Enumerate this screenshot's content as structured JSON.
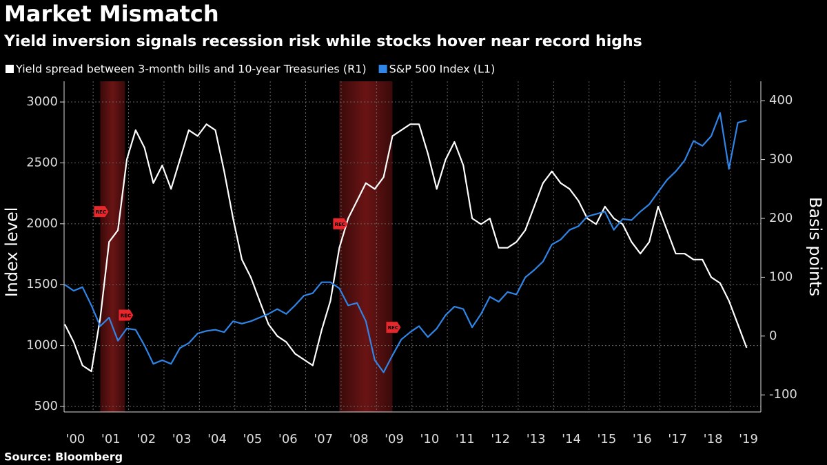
{
  "chart_data": {
    "type": "line",
    "title": "Market Mismatch",
    "subtitle": "Yield inversion signals recession risk while stocks hover near record highs",
    "source": "Source: Bloomberg",
    "ylabel": "Index level",
    "y2label": "Basis points",
    "xlim": [
      2000.18,
      2019.85
    ],
    "ylim": [
      455,
      3170
    ],
    "y2lim": [
      -129,
      433
    ],
    "yticks": [
      500,
      1000,
      1500,
      2000,
      2500,
      3000
    ],
    "y2ticks": [
      -100,
      0,
      100,
      200,
      300,
      400
    ],
    "xticks": [
      {
        "value": 2000.5,
        "label": "'00"
      },
      {
        "value": 2001.5,
        "label": "'01"
      },
      {
        "value": 2002.5,
        "label": "'02"
      },
      {
        "value": 2003.5,
        "label": "'03"
      },
      {
        "value": 2004.5,
        "label": "'04"
      },
      {
        "value": 2005.5,
        "label": "'05"
      },
      {
        "value": 2006.5,
        "label": "'06"
      },
      {
        "value": 2007.5,
        "label": "'07"
      },
      {
        "value": 2008.5,
        "label": "'08"
      },
      {
        "value": 2009.5,
        "label": "'09"
      },
      {
        "value": 2010.5,
        "label": "'10"
      },
      {
        "value": 2011.5,
        "label": "'11"
      },
      {
        "value": 2012.5,
        "label": "'12"
      },
      {
        "value": 2013.5,
        "label": "'13"
      },
      {
        "value": 2014.5,
        "label": "'14"
      },
      {
        "value": 2015.5,
        "label": "'15"
      },
      {
        "value": 2016.5,
        "label": "'16"
      },
      {
        "value": 2017.5,
        "label": "'17"
      },
      {
        "value": 2018.5,
        "label": "'18"
      },
      {
        "value": 2019.5,
        "label": "'19"
      }
    ],
    "grid": true,
    "legend": "top-left",
    "x": [
      2000.2,
      2000.45,
      2000.7,
      2000.95,
      2001.2,
      2001.45,
      2001.7,
      2001.95,
      2002.2,
      2002.45,
      2002.7,
      2002.95,
      2003.2,
      2003.45,
      2003.7,
      2003.95,
      2004.2,
      2004.45,
      2004.7,
      2004.95,
      2005.2,
      2005.45,
      2005.7,
      2005.95,
      2006.2,
      2006.45,
      2006.7,
      2006.95,
      2007.2,
      2007.45,
      2007.7,
      2007.95,
      2008.2,
      2008.45,
      2008.7,
      2008.95,
      2009.2,
      2009.45,
      2009.7,
      2009.95,
      2010.2,
      2010.45,
      2010.7,
      2010.95,
      2011.2,
      2011.45,
      2011.7,
      2011.95,
      2012.2,
      2012.45,
      2012.7,
      2012.95,
      2013.2,
      2013.45,
      2013.7,
      2013.95,
      2014.2,
      2014.45,
      2014.7,
      2014.95,
      2015.2,
      2015.45,
      2015.7,
      2015.95,
      2016.2,
      2016.45,
      2016.7,
      2016.95,
      2017.2,
      2017.45,
      2017.7,
      2017.95,
      2018.2,
      2018.45,
      2018.7,
      2018.95,
      2019.2,
      2019.45
    ],
    "series": [
      {
        "name": "Yield spread between 3-month bills and 10-year Treasuries (R1)",
        "color": "#ffffff",
        "axis": "y2",
        "values": [
          20,
          -10,
          -50,
          -60,
          30,
          160,
          180,
          300,
          350,
          320,
          260,
          290,
          250,
          300,
          350,
          340,
          360,
          350,
          280,
          200,
          130,
          100,
          60,
          20,
          0,
          -10,
          -30,
          -40,
          -50,
          10,
          60,
          150,
          200,
          230,
          260,
          250,
          270,
          340,
          350,
          360,
          360,
          310,
          250,
          300,
          330,
          290,
          200,
          190,
          200,
          150,
          150,
          160,
          180,
          220,
          260,
          280,
          260,
          250,
          230,
          200,
          190,
          220,
          200,
          190,
          160,
          140,
          160,
          220,
          180,
          140,
          140,
          130,
          130,
          100,
          90,
          60,
          20,
          -20
        ]
      },
      {
        "name": "S&P 500 Index  (L1)",
        "color": "#2f86e8",
        "axis": "y",
        "values": [
          1500,
          1450,
          1480,
          1330,
          1160,
          1230,
          1040,
          1140,
          1130,
          1000,
          850,
          880,
          850,
          980,
          1020,
          1100,
          1120,
          1130,
          1110,
          1200,
          1180,
          1200,
          1230,
          1260,
          1300,
          1260,
          1330,
          1410,
          1430,
          1520,
          1520,
          1470,
          1330,
          1350,
          1200,
          880,
          780,
          920,
          1050,
          1110,
          1160,
          1070,
          1140,
          1250,
          1320,
          1300,
          1150,
          1260,
          1400,
          1360,
          1440,
          1420,
          1560,
          1620,
          1690,
          1830,
          1870,
          1950,
          1980,
          2060,
          2080,
          2100,
          1950,
          2040,
          2030,
          2100,
          2160,
          2260,
          2360,
          2430,
          2520,
          2680,
          2640,
          2720,
          2910,
          2450,
          2830,
          2850
        ]
      }
    ],
    "shaded_regions": [
      [
        2001.2,
        2001.9
      ],
      [
        2007.95,
        2009.45
      ]
    ],
    "annotations": [
      {
        "text": "REC",
        "x": 2001.2,
        "y": 2100
      },
      {
        "text": "REC",
        "x": 2001.9,
        "y": 1250
      },
      {
        "text": "REC",
        "x": 2007.95,
        "y": 2000
      },
      {
        "text": "REC",
        "x": 2009.45,
        "y": 1150
      }
    ]
  }
}
